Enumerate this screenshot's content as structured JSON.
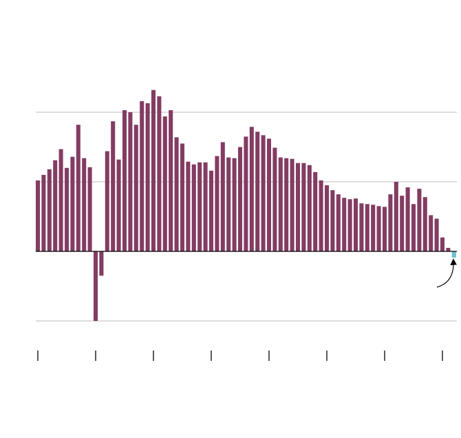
{
  "chart_data": {
    "type": "bar",
    "x": [
      0,
      1,
      2,
      3,
      4,
      5,
      6,
      7,
      8,
      9,
      10,
      11,
      12,
      13,
      14,
      15,
      16,
      17,
      18,
      19,
      20,
      21,
      22,
      23,
      24,
      25,
      26,
      27,
      28,
      29,
      30,
      31,
      32,
      33,
      34,
      35,
      36,
      37,
      38,
      39,
      40,
      41,
      42,
      43,
      44,
      45,
      46,
      47,
      48,
      49,
      50,
      51,
      52,
      53,
      54,
      55,
      56,
      57,
      58,
      59,
      60,
      61,
      62,
      63,
      64,
      65,
      66,
      67,
      68,
      69,
      70,
      71,
      72
    ],
    "values": [
      1.02,
      1.1,
      1.18,
      1.31,
      1.47,
      1.2,
      1.36,
      1.82,
      1.34,
      1.21,
      -1.0,
      -0.35,
      1.44,
      1.87,
      1.32,
      2.03,
      2.0,
      1.82,
      2.16,
      2.13,
      2.32,
      2.23,
      1.94,
      2.03,
      1.64,
      1.55,
      1.29,
      1.25,
      1.28,
      1.28,
      1.16,
      1.37,
      1.57,
      1.35,
      1.34,
      1.5,
      1.65,
      1.79,
      1.72,
      1.67,
      1.62,
      1.49,
      1.35,
      1.34,
      1.33,
      1.27,
      1.27,
      1.24,
      1.14,
      1.02,
      0.95,
      0.88,
      0.82,
      0.77,
      0.75,
      0.76,
      0.69,
      0.68,
      0.67,
      0.65,
      0.64,
      0.82,
      1.0,
      0.8,
      0.92,
      0.68,
      0.9,
      0.78,
      0.52,
      0.47,
      0.2,
      0.05,
      -0.09
    ],
    "color": "#833c62",
    "highlight": {
      "index": 72,
      "color": "#6fc0c8"
    },
    "xlim": [
      -0.5,
      72.5
    ],
    "xticks": [
      0,
      10,
      20,
      30,
      40,
      50,
      60,
      70
    ],
    "ylim": [
      -1.4,
      3.6
    ],
    "yticks": [
      -1,
      0,
      1,
      2
    ],
    "grid": true
  }
}
